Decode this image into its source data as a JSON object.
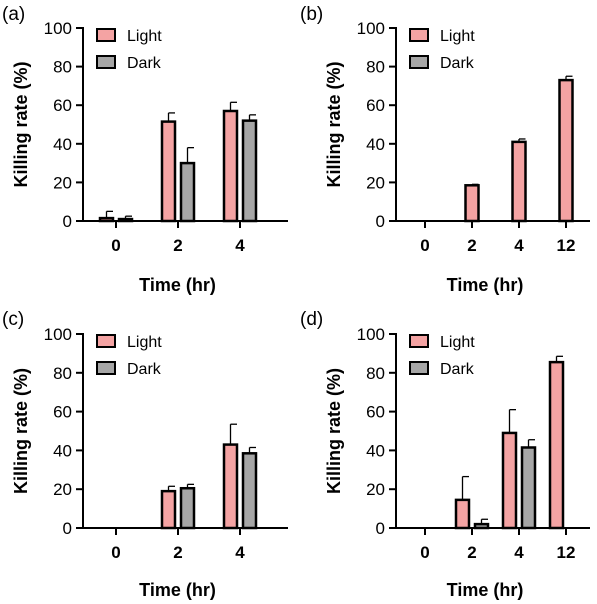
{
  "colors": {
    "light": "#f4a3a3",
    "dark": "#a6a6a6",
    "stroke": "#000000"
  },
  "chart_data": [
    {
      "panel_label": "(a)",
      "type": "bar",
      "categories": [
        "0",
        "2",
        "4"
      ],
      "series": [
        {
          "name": "Light",
          "values": [
            1.5,
            51.5,
            57
          ],
          "errors": [
            3.5,
            4.5,
            4.5
          ]
        },
        {
          "name": "Dark",
          "values": [
            1,
            30,
            52
          ],
          "errors": [
            1.5,
            8,
            3
          ]
        }
      ],
      "xlabel": "Time (hr)",
      "ylabel": "Killing rate (%)",
      "ylim": [
        0,
        100
      ],
      "yticks": [
        0,
        20,
        40,
        60,
        80,
        100
      ],
      "legend": "top-left"
    },
    {
      "panel_label": "(b)",
      "type": "bar",
      "categories": [
        "0",
        "2",
        "4",
        "12"
      ],
      "series": [
        {
          "name": "Light",
          "values": [
            0,
            18.5,
            41,
            73
          ],
          "errors": [
            0,
            0.5,
            1.5,
            2
          ]
        }
      ],
      "legend_entries": [
        "Light",
        "Dark"
      ],
      "xlabel": "Time (hr)",
      "ylabel": "Killing rate (%)",
      "ylim": [
        0,
        100
      ],
      "yticks": [
        0,
        20,
        40,
        60,
        80,
        100
      ],
      "legend": "top-left"
    },
    {
      "panel_label": "(c)",
      "type": "bar",
      "categories": [
        "0",
        "2",
        "4"
      ],
      "series": [
        {
          "name": "Light",
          "values": [
            0,
            19,
            43
          ],
          "errors": [
            0,
            2.5,
            10.5
          ]
        },
        {
          "name": "Dark",
          "values": [
            0,
            20.5,
            38.5
          ],
          "errors": [
            0,
            2,
            3
          ]
        }
      ],
      "xlabel": "Time (hr)",
      "ylabel": "Killing rate (%)",
      "ylim": [
        0,
        100
      ],
      "yticks": [
        0,
        20,
        40,
        60,
        80,
        100
      ],
      "legend": "top-left"
    },
    {
      "panel_label": "(d)",
      "type": "bar",
      "categories": [
        "0",
        "2",
        "4",
        "12"
      ],
      "series": [
        {
          "name": "Light",
          "values": [
            0,
            14.5,
            49,
            85.5
          ],
          "errors": [
            0,
            12,
            12,
            3
          ]
        },
        {
          "name": "Dark",
          "values": [
            0,
            2,
            41.5,
            null
          ],
          "errors": [
            0,
            2.5,
            4,
            0
          ]
        }
      ],
      "xlabel": "Time (hr)",
      "ylabel": "Killing rate (%)",
      "ylim": [
        0,
        100
      ],
      "yticks": [
        0,
        20,
        40,
        60,
        80,
        100
      ],
      "legend": "top-left"
    }
  ]
}
